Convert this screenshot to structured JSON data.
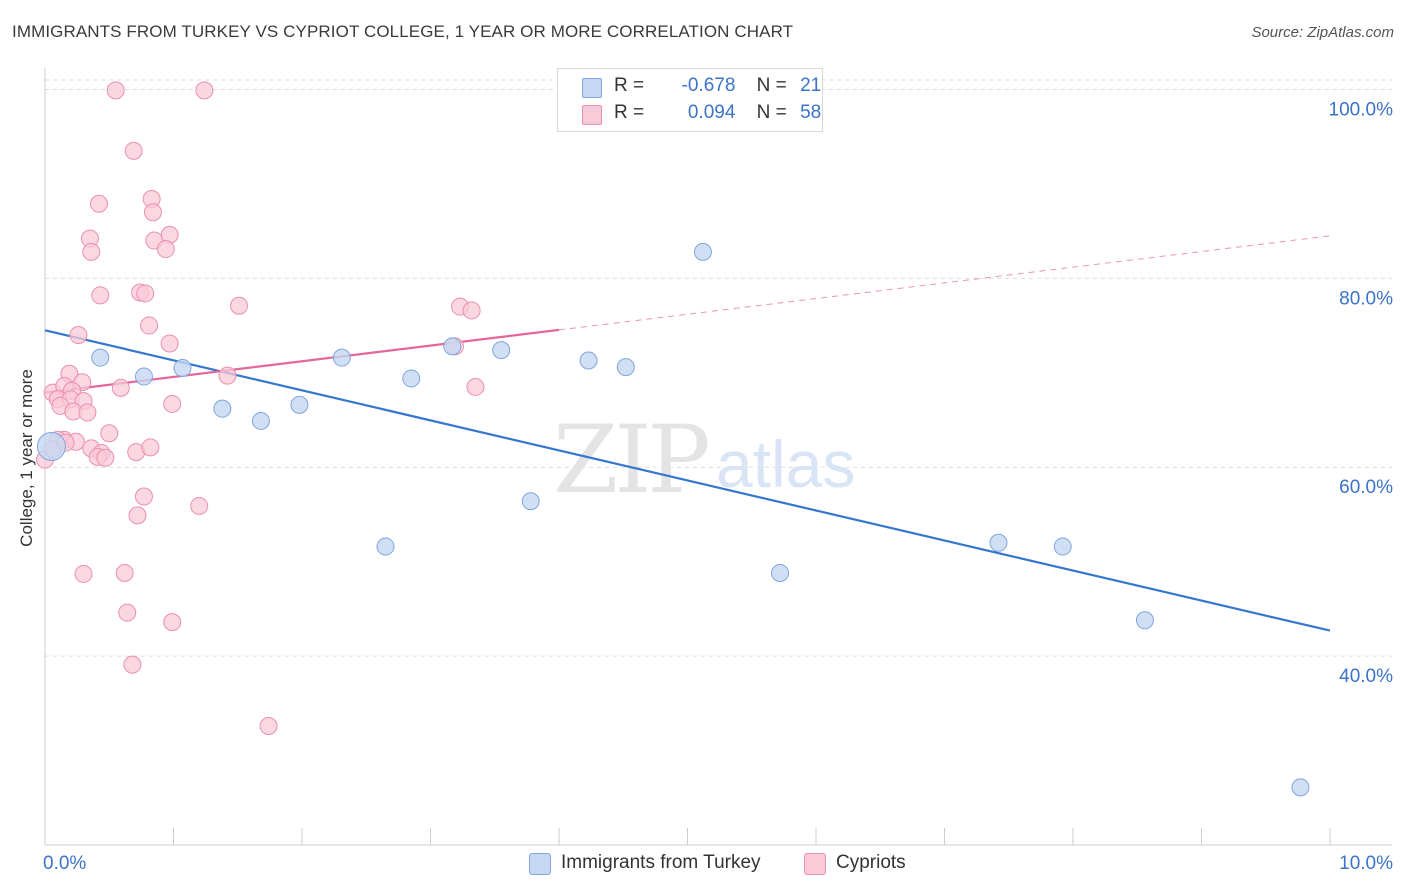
{
  "header": {
    "title": "IMMIGRANTS FROM TURKEY VS CYPRIOT COLLEGE, 1 YEAR OR MORE CORRELATION CHART",
    "source": "Source: ZipAtlas.com"
  },
  "watermark": {
    "zip": "ZIP",
    "atlas": "atlas"
  },
  "legend_top": [
    {
      "r_label": "R =",
      "r_value": "-0.678",
      "n_label": "N =",
      "n_value": "21",
      "color": "#a9c4ec"
    },
    {
      "r_label": "R =",
      "r_value": "0.094",
      "n_label": "N =",
      "n_value": "58",
      "color": "#f6b7c9"
    }
  ],
  "legend_bottom": [
    {
      "label": "Immigrants from Turkey",
      "color": "#a9c4ec"
    },
    {
      "label": "Cypriots",
      "color": "#f6b7c9"
    }
  ],
  "colors": {
    "blue_fill": "#c5d7f2",
    "blue_stroke": "#7fa6de",
    "blue_line": "#3576d0",
    "pink_fill": "#f9cad8",
    "pink_stroke": "#eb90ad",
    "pink_line": "#e3679a",
    "tick_label": "#3b73c8",
    "grid": "#dddddd"
  },
  "chart_data": {
    "type": "scatter",
    "title": "IMMIGRANTS FROM TURKEY VS CYPRIOT COLLEGE, 1 YEAR OR MORE CORRELATION CHART",
    "xlabel": "",
    "ylabel": "College, 1 year or more",
    "xlim": [
      0,
      10
    ],
    "ylim": [
      20,
      101
    ],
    "x_tick_labels": [
      "0.0%",
      "10.0%"
    ],
    "y_ticks": [
      40,
      60,
      80,
      100
    ],
    "y_tick_labels": [
      "40.0%",
      "60.0%",
      "80.0%",
      "100.0%"
    ],
    "grid": true,
    "legend_position": "top-center",
    "series": [
      {
        "name": "Immigrants from Turkey",
        "points": [
          [
            0.05,
            62.2
          ],
          [
            0.43,
            71.6
          ],
          [
            0.77,
            69.6
          ],
          [
            1.07,
            70.5
          ],
          [
            1.38,
            66.2
          ],
          [
            1.68,
            64.9
          ],
          [
            1.98,
            66.6
          ],
          [
            2.31,
            71.6
          ],
          [
            2.65,
            51.6
          ],
          [
            2.85,
            69.4
          ],
          [
            3.17,
            72.8
          ],
          [
            3.55,
            72.4
          ],
          [
            3.78,
            56.4
          ],
          [
            4.23,
            71.3
          ],
          [
            4.52,
            70.6
          ],
          [
            5.12,
            82.8
          ],
          [
            5.72,
            48.8
          ],
          [
            7.42,
            52.0
          ],
          [
            7.92,
            51.6
          ],
          [
            8.56,
            43.8
          ],
          [
            9.77,
            26.1
          ]
        ],
        "trend": {
          "x": [
            0,
            10
          ],
          "y": [
            74.5,
            42.7
          ]
        }
      },
      {
        "name": "Cypriots",
        "points": [
          [
            0.55,
            99.9
          ],
          [
            1.24,
            99.9
          ],
          [
            0.69,
            93.5
          ],
          [
            0.83,
            88.4
          ],
          [
            0.84,
            87.0
          ],
          [
            0.42,
            87.9
          ],
          [
            0.35,
            84.2
          ],
          [
            0.85,
            84.0
          ],
          [
            0.97,
            84.6
          ],
          [
            0.36,
            82.8
          ],
          [
            0.94,
            83.1
          ],
          [
            0.74,
            78.5
          ],
          [
            0.78,
            78.4
          ],
          [
            0.43,
            78.2
          ],
          [
            1.51,
            77.1
          ],
          [
            3.23,
            77.0
          ],
          [
            3.32,
            76.6
          ],
          [
            0.81,
            75.0
          ],
          [
            0.26,
            74.0
          ],
          [
            0.97,
            73.1
          ],
          [
            3.19,
            72.8
          ],
          [
            0.19,
            69.9
          ],
          [
            0.29,
            69.0
          ],
          [
            1.42,
            69.7
          ],
          [
            0.59,
            68.4
          ],
          [
            3.35,
            68.5
          ],
          [
            0.06,
            67.9
          ],
          [
            0.15,
            68.6
          ],
          [
            0.21,
            68.1
          ],
          [
            0.1,
            67.2
          ],
          [
            0.2,
            67.2
          ],
          [
            0.3,
            67.0
          ],
          [
            0.12,
            66.5
          ],
          [
            0.99,
            66.7
          ],
          [
            0.22,
            65.9
          ],
          [
            0.33,
            65.8
          ],
          [
            0.5,
            63.6
          ],
          [
            0.15,
            62.9
          ],
          [
            0.24,
            62.7
          ],
          [
            0.36,
            62.0
          ],
          [
            0.44,
            61.5
          ],
          [
            0.41,
            61.1
          ],
          [
            0.47,
            61.0
          ],
          [
            0.71,
            61.6
          ],
          [
            0.82,
            62.1
          ],
          [
            0.0,
            60.8
          ],
          [
            0.77,
            56.9
          ],
          [
            0.72,
            54.9
          ],
          [
            1.2,
            55.9
          ],
          [
            0.62,
            48.8
          ],
          [
            0.3,
            48.7
          ],
          [
            0.64,
            44.6
          ],
          [
            0.99,
            43.6
          ],
          [
            0.68,
            39.1
          ],
          [
            1.74,
            32.6
          ],
          [
            0.1,
            62.9
          ],
          [
            0.06,
            61.9
          ],
          [
            0.16,
            62.6
          ]
        ],
        "trend": {
          "x": [
            0,
            10
          ],
          "y": [
            67.9,
            84.5
          ],
          "solid_until_x": 4
        }
      }
    ]
  }
}
